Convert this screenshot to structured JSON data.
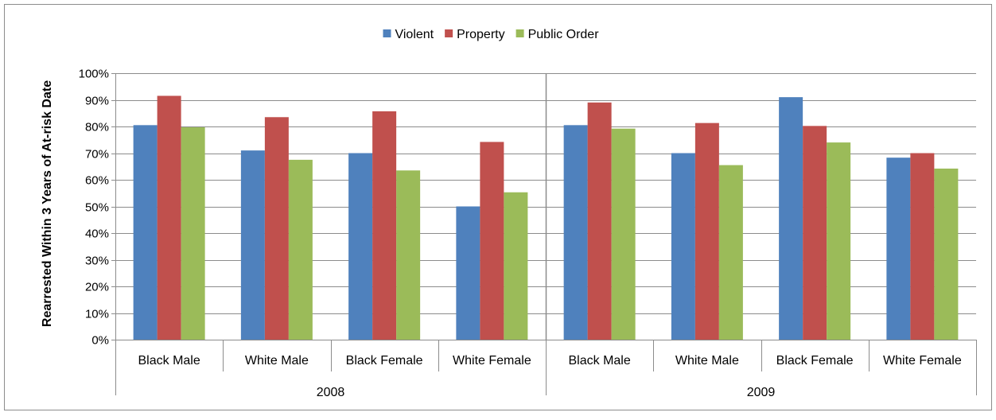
{
  "chart_data": {
    "type": "bar",
    "ylabel": "Rearrested Within 3 Years of At-risk Date",
    "ylim": [
      0,
      100
    ],
    "ytick_step": 10,
    "ytick_format": "percent",
    "grid": true,
    "legend_position": "top-center",
    "groups": [
      "2008",
      "2009"
    ],
    "categories": [
      "Black Male",
      "White Male",
      "Black Female",
      "White Female"
    ],
    "series": [
      {
        "name": "Violent",
        "color": "#4F81BD",
        "values": [
          [
            80.5,
            71.0,
            70.0,
            50.0
          ],
          [
            80.5,
            70.0,
            91.0,
            68.3
          ]
        ]
      },
      {
        "name": "Property",
        "color": "#C0504D",
        "values": [
          [
            91.5,
            83.5,
            85.7,
            74.2
          ],
          [
            89.0,
            81.3,
            80.2,
            70.0
          ]
        ]
      },
      {
        "name": "Public Order",
        "color": "#9BBB59",
        "values": [
          [
            79.7,
            67.5,
            63.5,
            55.3
          ],
          [
            79.2,
            65.5,
            74.0,
            64.2
          ]
        ]
      }
    ]
  }
}
